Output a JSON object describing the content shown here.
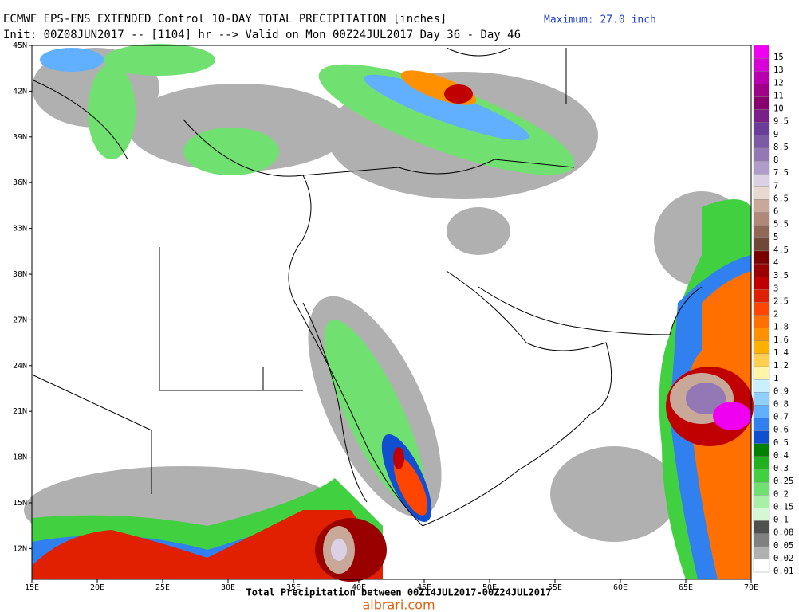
{
  "header": {
    "title": "ECMWF EPS-ENS EXTENDED Control 10-DAY TOTAL PRECIPITATION [inches]",
    "maximum": "Maximum: 27.0 inch",
    "init": "Init: 00Z08JUN2017 -- [1104] hr --> Valid on Mon 00Z24JUL2017  Day 36 - Day 46"
  },
  "map": {
    "lat_labels": [
      "45N",
      "42N",
      "39N",
      "36N",
      "33N",
      "30N",
      "27N",
      "24N",
      "21N",
      "18N",
      "15N",
      "12N"
    ],
    "lon_labels": [
      "15E",
      "20E",
      "25E",
      "30E",
      "35E",
      "40E",
      "45E",
      "50E",
      "55E",
      "60E",
      "65E",
      "70E"
    ]
  },
  "colorbar": [
    {
      "label": "15",
      "color": "#f000f0"
    },
    {
      "label": "13",
      "color": "#d800d8"
    },
    {
      "label": "12",
      "color": "#b800b0"
    },
    {
      "label": "11",
      "color": "#a00088"
    },
    {
      "label": "10",
      "color": "#880070"
    },
    {
      "label": "9.5",
      "color": "#782088"
    },
    {
      "label": "9",
      "color": "#6a3d9a"
    },
    {
      "label": "8.5",
      "color": "#7b5aa6"
    },
    {
      "label": "8",
      "color": "#9478b6"
    },
    {
      "label": "7.5",
      "color": "#b09cc8"
    },
    {
      "label": "7",
      "color": "#dcd0e4"
    },
    {
      "label": "6.5",
      "color": "#e8d8d0"
    },
    {
      "label": "6",
      "color": "#c8a898"
    },
    {
      "label": "5.5",
      "color": "#b08878"
    },
    {
      "label": "5",
      "color": "#906858"
    },
    {
      "label": "4.5",
      "color": "#704838"
    },
    {
      "label": "4",
      "color": "#7a0000"
    },
    {
      "label": "3.5",
      "color": "#9a0000"
    },
    {
      "label": "3",
      "color": "#c00000"
    },
    {
      "label": "2.5",
      "color": "#e02000"
    },
    {
      "label": "2",
      "color": "#ff4500"
    },
    {
      "label": "1.8",
      "color": "#ff7000"
    },
    {
      "label": "1.6",
      "color": "#ff9000"
    },
    {
      "label": "1.4",
      "color": "#ffb000"
    },
    {
      "label": "1.2",
      "color": "#ffd050"
    },
    {
      "label": "1",
      "color": "#fff4a8"
    },
    {
      "label": "0.9",
      "color": "#c8f0ff"
    },
    {
      "label": "0.8",
      "color": "#90d0ff"
    },
    {
      "label": "0.7",
      "color": "#60b0ff"
    },
    {
      "label": "0.6",
      "color": "#3080f0"
    },
    {
      "label": "0.5",
      "color": "#1050d0"
    },
    {
      "label": "0.4",
      "color": "#008000"
    },
    {
      "label": "0.3",
      "color": "#20b020"
    },
    {
      "label": "0.25",
      "color": "#40d040"
    },
    {
      "label": "0.2",
      "color": "#70e070"
    },
    {
      "label": "0.15",
      "color": "#a8f0a8"
    },
    {
      "label": "0.1",
      "color": "#d4f8d4"
    },
    {
      "label": "0.08",
      "color": "#505050"
    },
    {
      "label": "0.05",
      "color": "#808080"
    },
    {
      "label": "0.02",
      "color": "#b0b0b0"
    },
    {
      "label": "0.01",
      "color": "#ffffff"
    }
  ],
  "footer": {
    "caption": "Total Precipitation between 00Z14JUL2017-00Z24JUL2017",
    "watermark": "albrari.com"
  }
}
